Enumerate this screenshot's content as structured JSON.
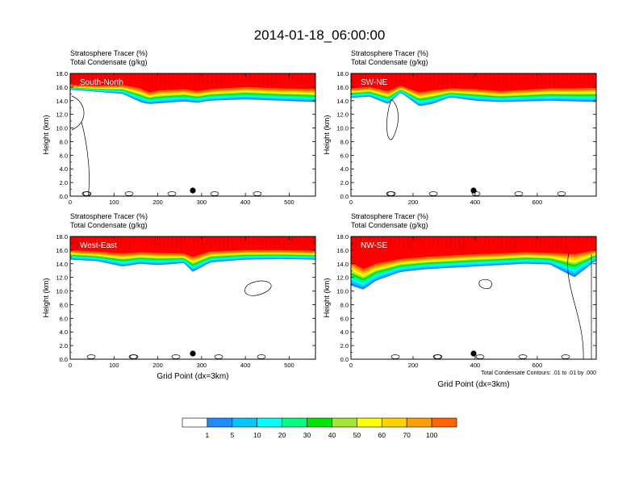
{
  "title": "2014-01-18_06:00:00",
  "colors": {
    "levels": [
      "#ffffff",
      "#1e8cff",
      "#00c8ff",
      "#00ffff",
      "#00ff80",
      "#00e600",
      "#a0e632",
      "#ffff00",
      "#ffd200",
      "#ffa000",
      "#ff6400",
      "#ff0000"
    ],
    "dark_red": "#c80000"
  },
  "colorbar": {
    "labels": [
      "1",
      "5",
      "10",
      "20",
      "30",
      "40",
      "50",
      "60",
      "70",
      "100"
    ]
  },
  "footnote": "Total Condensate Contours: .01 to .01 by .000",
  "chart_data": [
    {
      "type": "heatmap",
      "label": "South-North",
      "var1": "Stratosphere Tracer",
      "unit1": "(%)",
      "var2": "Total Condensate",
      "unit2": "(g/kg)",
      "ylabel": "Height (km)",
      "xlabel": "",
      "ylim": [
        0,
        18
      ],
      "xlim": [
        0,
        560
      ],
      "yticks": [
        "0.0",
        "2.0",
        "4.0",
        "6.0",
        "8.0",
        "10.0",
        "12.0",
        "14.0",
        "16.0",
        "18.0"
      ],
      "xticks": [
        0,
        100,
        200,
        300,
        400,
        500
      ],
      "marker_x": 280,
      "tracer_profile": {
        "x": [
          0,
          60,
          120,
          160,
          180,
          200,
          260,
          290,
          320,
          400,
          480,
          560
        ],
        "base_km": [
          15.6,
          15.3,
          15.0,
          13.8,
          13.5,
          13.6,
          13.9,
          13.7,
          14.0,
          14.2,
          14.0,
          13.8
        ],
        "mid_km": [
          16.2,
          16.0,
          16.1,
          15.6,
          15.0,
          15.3,
          15.5,
          15.2,
          15.5,
          15.8,
          15.6,
          15.5
        ]
      }
    },
    {
      "type": "heatmap",
      "label": "SW-NE",
      "var1": "Stratosphere Tracer",
      "unit1": "(%)",
      "var2": "Total Condensate",
      "unit2": "(g/kg)",
      "ylabel": "Height (km)",
      "xlabel": "",
      "ylim": [
        0,
        18
      ],
      "xlim": [
        0,
        790
      ],
      "yticks": [
        "0.0",
        "2.0",
        "4.0",
        "6.0",
        "8.0",
        "10.0",
        "12.0",
        "14.0",
        "16.0",
        "18.0"
      ],
      "xticks": [
        0,
        200,
        400,
        600
      ],
      "marker_x": 395,
      "tracer_profile": {
        "x": [
          0,
          60,
          120,
          160,
          220,
          260,
          320,
          400,
          480,
          560,
          640,
          720,
          790
        ],
        "base_km": [
          14.4,
          14.6,
          13.5,
          15.2,
          13.2,
          13.5,
          14.5,
          14.0,
          13.8,
          13.9,
          14.0,
          13.9,
          13.8
        ],
        "mid_km": [
          15.6,
          15.8,
          15.2,
          16.0,
          15.0,
          15.3,
          15.6,
          15.5,
          15.2,
          15.4,
          15.6,
          15.6,
          15.7
        ]
      }
    },
    {
      "type": "heatmap",
      "label": "West-East",
      "var1": "Stratosphere Tracer",
      "unit1": "(%)",
      "var2": "Total Condensate",
      "unit2": "(g/kg)",
      "ylabel": "Height (km)",
      "xlabel": "Grid Point (dx=3km)",
      "ylim": [
        0,
        18
      ],
      "xlim": [
        0,
        560
      ],
      "yticks": [
        "0.0",
        "2.0",
        "4.0",
        "6.0",
        "8.0",
        "10.0",
        "12.0",
        "14.0",
        "16.0",
        "18.0"
      ],
      "xticks": [
        0,
        100,
        200,
        300,
        400,
        500
      ],
      "marker_x": 280,
      "tracer_profile": {
        "x": [
          0,
          60,
          120,
          160,
          200,
          260,
          280,
          320,
          400,
          480,
          560
        ],
        "base_km": [
          14.6,
          14.4,
          13.6,
          14.0,
          13.8,
          14.1,
          12.8,
          14.2,
          14.6,
          14.7,
          14.6
        ],
        "mid_km": [
          15.8,
          15.6,
          15.3,
          15.5,
          15.4,
          15.3,
          14.8,
          15.6,
          15.8,
          15.8,
          15.7
        ]
      }
    },
    {
      "type": "heatmap",
      "label": "NW-SE",
      "var1": "Stratosphere Tracer",
      "unit1": "(%)",
      "var2": "Total Condensate",
      "unit2": "(g/kg)",
      "ylabel": "Height (km)",
      "xlabel": "Grid Point (dx=3km)",
      "ylim": [
        0,
        18
      ],
      "xlim": [
        0,
        790
      ],
      "yticks": [
        "0.0",
        "2.0",
        "4.0",
        "6.0",
        "8.0",
        "10.0",
        "12.0",
        "14.0",
        "16.0",
        "18.0"
      ],
      "xticks": [
        0,
        200,
        400,
        600
      ],
      "marker_x": 395,
      "tracer_profile": {
        "x": [
          0,
          40,
          80,
          160,
          240,
          320,
          400,
          480,
          560,
          640,
          720,
          790
        ],
        "base_km": [
          10.8,
          10.2,
          11.5,
          12.8,
          13.2,
          13.4,
          13.6,
          13.8,
          14.0,
          13.9,
          12.0,
          14.5
        ],
        "mid_km": [
          14.0,
          13.0,
          13.8,
          14.5,
          14.8,
          15.0,
          15.2,
          15.3,
          15.5,
          15.4,
          15.2,
          15.8
        ]
      }
    }
  ]
}
